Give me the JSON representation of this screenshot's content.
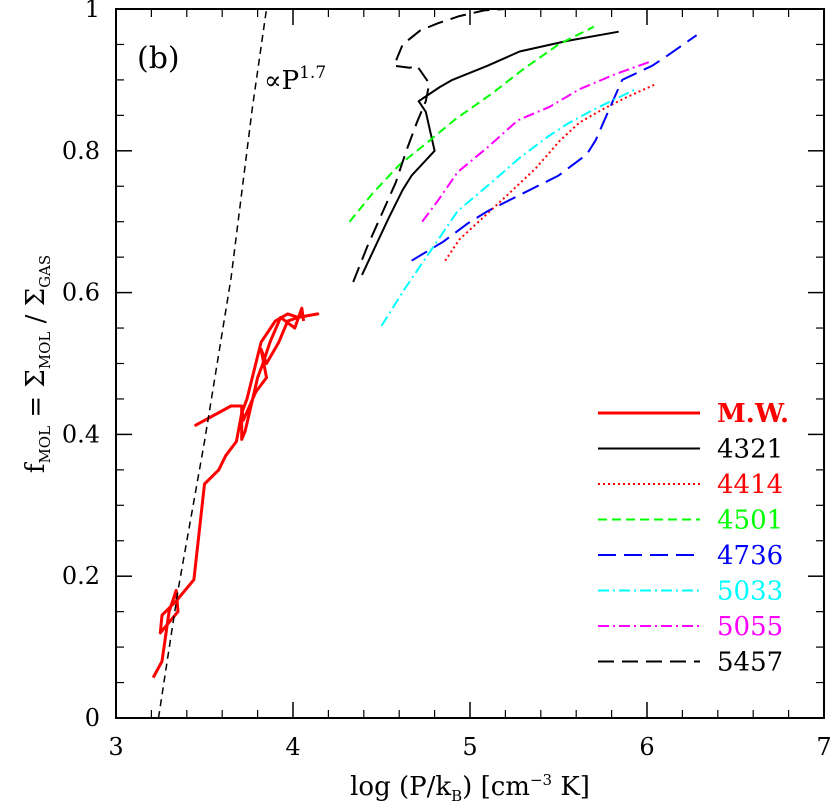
{
  "chart_data": {
    "type": "line",
    "panel_label": "(b)",
    "annotation": "∝P",
    "annotation_exp": "1.7",
    "xlabel": {
      "pre": "log (P/k",
      "sub": "B",
      "mid": ") [cm",
      "sup": "−3",
      "post": " K]"
    },
    "ylabel": {
      "f": "f",
      "f_sub": "MOL",
      "eq": " = Σ",
      "num_sub": "MOL",
      "slash": " / Σ",
      "den_sub": "GAS"
    },
    "xlim": [
      3,
      7
    ],
    "ylim": [
      0,
      1
    ],
    "xticks": [
      "3",
      "4",
      "5",
      "6",
      "7"
    ],
    "yticks": [
      "0",
      "0.2",
      "0.4",
      "0.6",
      "0.8",
      "1"
    ],
    "grid": false,
    "legend_position": "bottom-right",
    "series": [
      {
        "name": "M.W.",
        "color": "#ff0000",
        "dash": "",
        "width": 3,
        "bold": true,
        "points": [
          [
            3.21,
            0.057
          ],
          [
            3.26,
            0.08
          ],
          [
            3.3,
            0.15
          ],
          [
            3.34,
            0.18
          ],
          [
            3.35,
            0.15
          ],
          [
            3.25,
            0.12
          ],
          [
            3.26,
            0.145
          ],
          [
            3.34,
            0.165
          ],
          [
            3.44,
            0.195
          ],
          [
            3.5,
            0.33
          ],
          [
            3.58,
            0.35
          ],
          [
            3.62,
            0.37
          ],
          [
            3.68,
            0.39
          ],
          [
            3.71,
            0.43
          ],
          [
            3.74,
            0.45
          ],
          [
            3.79,
            0.5
          ],
          [
            3.82,
            0.53
          ],
          [
            3.9,
            0.56
          ],
          [
            3.97,
            0.57
          ],
          [
            4.03,
            0.565
          ],
          [
            4.14,
            0.57
          ],
          [
            4.03,
            0.565
          ],
          [
            3.97,
            0.56
          ],
          [
            3.92,
            0.53
          ],
          [
            3.85,
            0.5
          ],
          [
            3.82,
            0.52
          ],
          [
            3.85,
            0.48
          ],
          [
            3.79,
            0.46
          ],
          [
            3.72,
            0.42
          ],
          [
            3.71,
            0.44
          ],
          [
            3.65,
            0.44
          ],
          [
            3.45,
            0.413
          ],
          [
            3.65,
            0.44
          ],
          [
            3.71,
            0.44
          ],
          [
            3.71,
            0.393
          ],
          [
            3.73,
            0.405
          ],
          [
            3.8,
            0.48
          ],
          [
            3.83,
            0.5
          ],
          [
            3.87,
            0.53
          ],
          [
            3.93,
            0.565
          ],
          [
            4.01,
            0.55
          ],
          [
            4.05,
            0.578
          ],
          [
            4.06,
            0.56
          ]
        ]
      },
      {
        "name": "4321",
        "color": "#000000",
        "dash": "",
        "width": 2,
        "bold": false,
        "points": [
          [
            4.39,
            0.625
          ],
          [
            4.54,
            0.705
          ],
          [
            4.62,
            0.745
          ],
          [
            4.67,
            0.765
          ],
          [
            4.8,
            0.8
          ],
          [
            4.75,
            0.855
          ],
          [
            4.71,
            0.87
          ],
          [
            4.83,
            0.89
          ],
          [
            4.9,
            0.9
          ],
          [
            5.1,
            0.92
          ],
          [
            5.28,
            0.94
          ],
          [
            5.55,
            0.955
          ],
          [
            5.84,
            0.968
          ]
        ]
      },
      {
        "name": "4414",
        "color": "#ff0000",
        "dash": "2,3",
        "width": 2,
        "bold": false,
        "points": [
          [
            4.86,
            0.645
          ],
          [
            4.94,
            0.675
          ],
          [
            5.07,
            0.705
          ],
          [
            5.2,
            0.735
          ],
          [
            5.37,
            0.775
          ],
          [
            5.51,
            0.815
          ],
          [
            5.62,
            0.84
          ],
          [
            5.76,
            0.86
          ],
          [
            5.88,
            0.875
          ],
          [
            6.04,
            0.893
          ]
        ]
      },
      {
        "name": "4501",
        "color": "#00ff00",
        "dash": "9,5",
        "width": 2,
        "bold": false,
        "points": [
          [
            4.32,
            0.7
          ],
          [
            4.45,
            0.74
          ],
          [
            4.6,
            0.78
          ],
          [
            4.75,
            0.81
          ],
          [
            4.92,
            0.845
          ],
          [
            5.12,
            0.88
          ],
          [
            5.3,
            0.915
          ],
          [
            5.5,
            0.95
          ],
          [
            5.7,
            0.975
          ]
        ]
      },
      {
        "name": "4736",
        "color": "#0000ff",
        "dash": "18,8",
        "width": 2,
        "bold": false,
        "points": [
          [
            4.67,
            0.645
          ],
          [
            4.85,
            0.672
          ],
          [
            4.99,
            0.698
          ],
          [
            5.1,
            0.715
          ],
          [
            5.3,
            0.74
          ],
          [
            5.5,
            0.765
          ],
          [
            5.66,
            0.795
          ],
          [
            5.71,
            0.815
          ],
          [
            5.78,
            0.855
          ],
          [
            5.86,
            0.9
          ],
          [
            6.03,
            0.92
          ],
          [
            6.12,
            0.935
          ],
          [
            6.28,
            0.963
          ]
        ]
      },
      {
        "name": "5033",
        "color": "#00ffff",
        "dash": "11,4,2,4",
        "width": 2,
        "bold": false,
        "points": [
          [
            4.5,
            0.553
          ],
          [
            4.63,
            0.605
          ],
          [
            4.78,
            0.66
          ],
          [
            4.93,
            0.715
          ],
          [
            5.12,
            0.755
          ],
          [
            5.28,
            0.79
          ],
          [
            5.44,
            0.82
          ],
          [
            5.55,
            0.838
          ],
          [
            5.69,
            0.857
          ],
          [
            5.83,
            0.874
          ],
          [
            5.93,
            0.886
          ]
        ]
      },
      {
        "name": "5055",
        "color": "#ff00ff",
        "dash": "11,4,2,4",
        "width": 2,
        "bold": false,
        "points": [
          [
            4.73,
            0.7
          ],
          [
            4.82,
            0.73
          ],
          [
            4.93,
            0.77
          ],
          [
            5.1,
            0.805
          ],
          [
            5.27,
            0.843
          ],
          [
            5.45,
            0.862
          ],
          [
            5.62,
            0.887
          ],
          [
            5.82,
            0.908
          ],
          [
            6.01,
            0.925
          ]
        ]
      },
      {
        "name": "5457",
        "color": "#000000",
        "dash": "16,8",
        "width": 2,
        "bold": false,
        "points": [
          [
            4.34,
            0.615
          ],
          [
            4.42,
            0.665
          ],
          [
            4.5,
            0.71
          ],
          [
            4.58,
            0.755
          ],
          [
            4.64,
            0.8
          ],
          [
            4.7,
            0.84
          ],
          [
            4.75,
            0.87
          ],
          [
            4.77,
            0.895
          ],
          [
            4.7,
            0.92
          ],
          [
            4.66,
            0.917
          ],
          [
            4.57,
            0.92
          ],
          [
            4.62,
            0.95
          ],
          [
            4.72,
            0.97
          ],
          [
            4.82,
            0.98
          ],
          [
            4.94,
            0.99
          ],
          [
            5.08,
            0.998
          ],
          [
            5.2,
            1.0
          ]
        ]
      },
      {
        "name": "",
        "color": "#000000",
        "dash": "7,5",
        "width": 1.5,
        "bold": false,
        "points": [
          [
            3.24,
            0.0
          ],
          [
            3.35,
            0.18
          ],
          [
            3.5,
            0.39
          ],
          [
            3.65,
            0.62
          ],
          [
            3.77,
            0.86
          ],
          [
            3.85,
            1.0
          ]
        ]
      }
    ]
  }
}
